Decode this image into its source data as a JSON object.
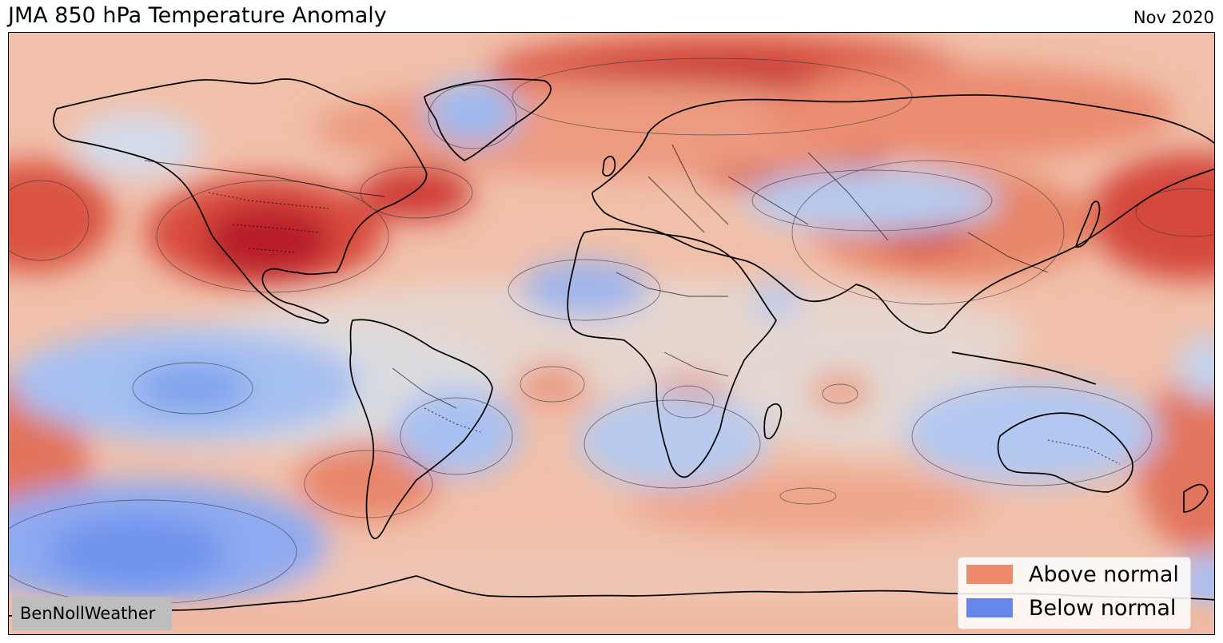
{
  "header": {
    "title": "JMA 850 hPa Temperature Anomaly",
    "date": "Nov 2020"
  },
  "map": {
    "projection": "plate-carree",
    "variable": "850 hPa temperature anomaly",
    "colormap": "coolwarm"
  },
  "legend": {
    "items": [
      {
        "label": "Above normal",
        "color": "#ed8a6d"
      },
      {
        "label": "Below normal",
        "color": "#6586eb"
      }
    ]
  },
  "credit": "BenNollWeather"
}
